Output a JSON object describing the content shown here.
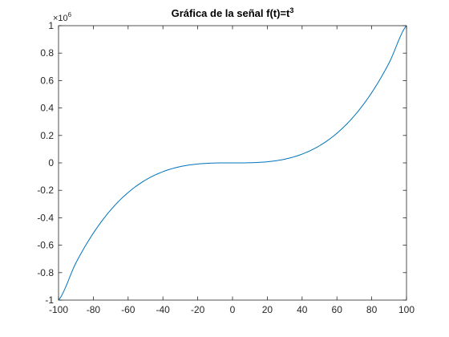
{
  "chart_data": {
    "type": "line",
    "title": {
      "text": "Gráfica de la señal f(t)=t",
      "superscript": "3"
    },
    "xlabel": "",
    "ylabel": "",
    "xlim": [
      -100,
      100
    ],
    "ylim": [
      -1000000,
      1000000
    ],
    "y_exponent": {
      "prefix": "×10",
      "power": "6"
    },
    "grid": false,
    "x_ticks": [
      {
        "value": -100,
        "label": "-100"
      },
      {
        "value": -80,
        "label": "-80"
      },
      {
        "value": -60,
        "label": "-60"
      },
      {
        "value": -40,
        "label": "-40"
      },
      {
        "value": -20,
        "label": "-20"
      },
      {
        "value": 0,
        "label": "0"
      },
      {
        "value": 20,
        "label": "20"
      },
      {
        "value": 40,
        "label": "40"
      },
      {
        "value": 60,
        "label": "60"
      },
      {
        "value": 80,
        "label": "80"
      },
      {
        "value": 100,
        "label": "100"
      }
    ],
    "y_ticks": [
      {
        "value": -1000000,
        "label": "-1"
      },
      {
        "value": -800000,
        "label": "-0.8"
      },
      {
        "value": -600000,
        "label": "-0.6"
      },
      {
        "value": -400000,
        "label": "-0.4"
      },
      {
        "value": -200000,
        "label": "-0.2"
      },
      {
        "value": 0,
        "label": "0"
      },
      {
        "value": 200000,
        "label": "0.2"
      },
      {
        "value": 400000,
        "label": "0.4"
      },
      {
        "value": 600000,
        "label": "0.6"
      },
      {
        "value": 800000,
        "label": "0.8"
      },
      {
        "value": 1000000,
        "label": "1"
      }
    ],
    "series": [
      {
        "color": "#0072BD",
        "x": [
          -100,
          -90,
          -80,
          -70,
          -60,
          -50,
          -40,
          -30,
          -20,
          -10,
          0,
          10,
          20,
          30,
          40,
          50,
          60,
          70,
          80,
          90,
          100
        ],
        "y": [
          -1000000,
          -729000,
          -512000,
          -343000,
          -216000,
          -125000,
          -64000,
          -27000,
          -8000,
          -1000,
          0,
          1000,
          8000,
          27000,
          64000,
          125000,
          216000,
          343000,
          512000,
          729000,
          1000000
        ]
      }
    ]
  }
}
